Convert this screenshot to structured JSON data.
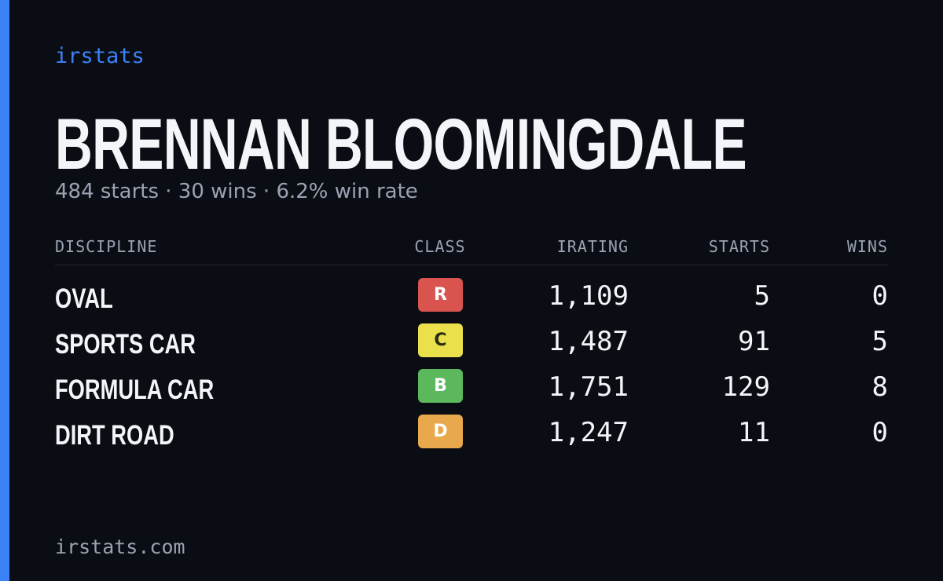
{
  "brand": "irstats",
  "title": "BRENNAN BLOOMINGDALE",
  "subtitle": "484 starts · 30 wins · 6.2% win rate",
  "table": {
    "headers": [
      "DISCIPLINE",
      "CLASS",
      "IRATING",
      "STARTS",
      "WINS"
    ],
    "rows": [
      {
        "discipline": "OVAL",
        "class": "R",
        "class_color": "#d9534f",
        "class_text_color": "#ffffff",
        "irating": "1,109",
        "starts": "5",
        "wins": "0"
      },
      {
        "discipline": "SPORTS CAR",
        "class": "C",
        "class_color": "#e9e04c",
        "class_text_color": "#2a2a14",
        "irating": "1,487",
        "starts": "91",
        "wins": "5"
      },
      {
        "discipline": "FORMULA CAR",
        "class": "B",
        "class_color": "#5cb85c",
        "class_text_color": "#ffffff",
        "irating": "1,751",
        "starts": "129",
        "wins": "8"
      },
      {
        "discipline": "DIRT ROAD",
        "class": "D",
        "class_color": "#e8a94c",
        "class_text_color": "#ffffff",
        "irating": "1,247",
        "starts": "11",
        "wins": "0"
      }
    ]
  },
  "footer": "irstats.com"
}
